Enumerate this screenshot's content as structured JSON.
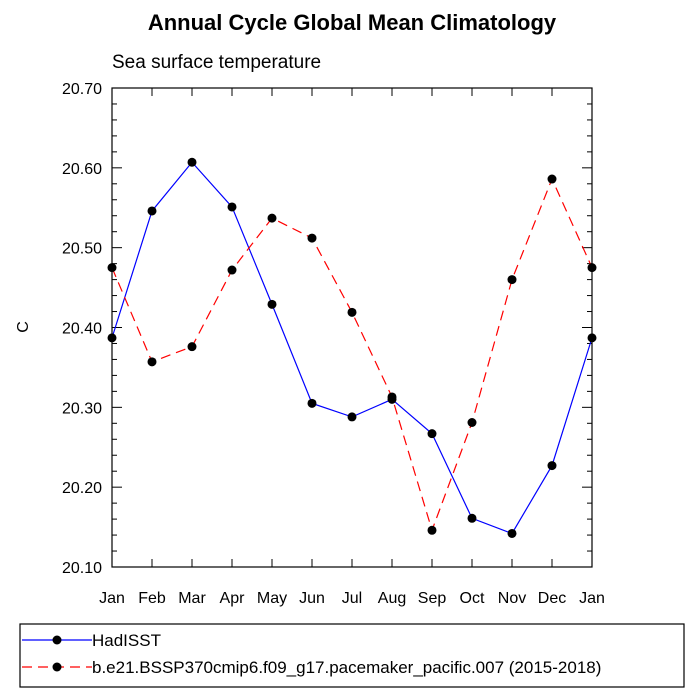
{
  "chart_data": {
    "type": "line",
    "title": "Annual Cycle Global Mean Climatology",
    "subtitle": "Sea surface temperature",
    "xlabel": "",
    "ylabel": "C",
    "categories": [
      "Jan",
      "Feb",
      "Mar",
      "Apr",
      "May",
      "Jun",
      "Jul",
      "Aug",
      "Sep",
      "Oct",
      "Nov",
      "Dec",
      "Jan"
    ],
    "ylim": [
      20.1,
      20.7
    ],
    "yticks": [
      "20.10",
      "20.20",
      "20.30",
      "20.40",
      "20.50",
      "20.60",
      "20.70"
    ],
    "grid": false,
    "legend_position": "bottom",
    "series": [
      {
        "name": "HadISST",
        "color": "#0000ff",
        "dash": "solid",
        "values": [
          20.387,
          20.546,
          20.607,
          20.551,
          20.429,
          20.305,
          20.288,
          20.31,
          20.267,
          20.161,
          20.142,
          20.227,
          20.387
        ]
      },
      {
        "name": "b.e21.BSSP370cmip6.f09_g17.pacemaker_pacific.007 (2015-2018)",
        "color": "#ff0000",
        "dash": "dashed",
        "values": [
          20.475,
          20.357,
          20.376,
          20.472,
          20.537,
          20.512,
          20.419,
          20.313,
          20.146,
          20.281,
          20.46,
          20.586,
          20.475
        ]
      }
    ]
  }
}
